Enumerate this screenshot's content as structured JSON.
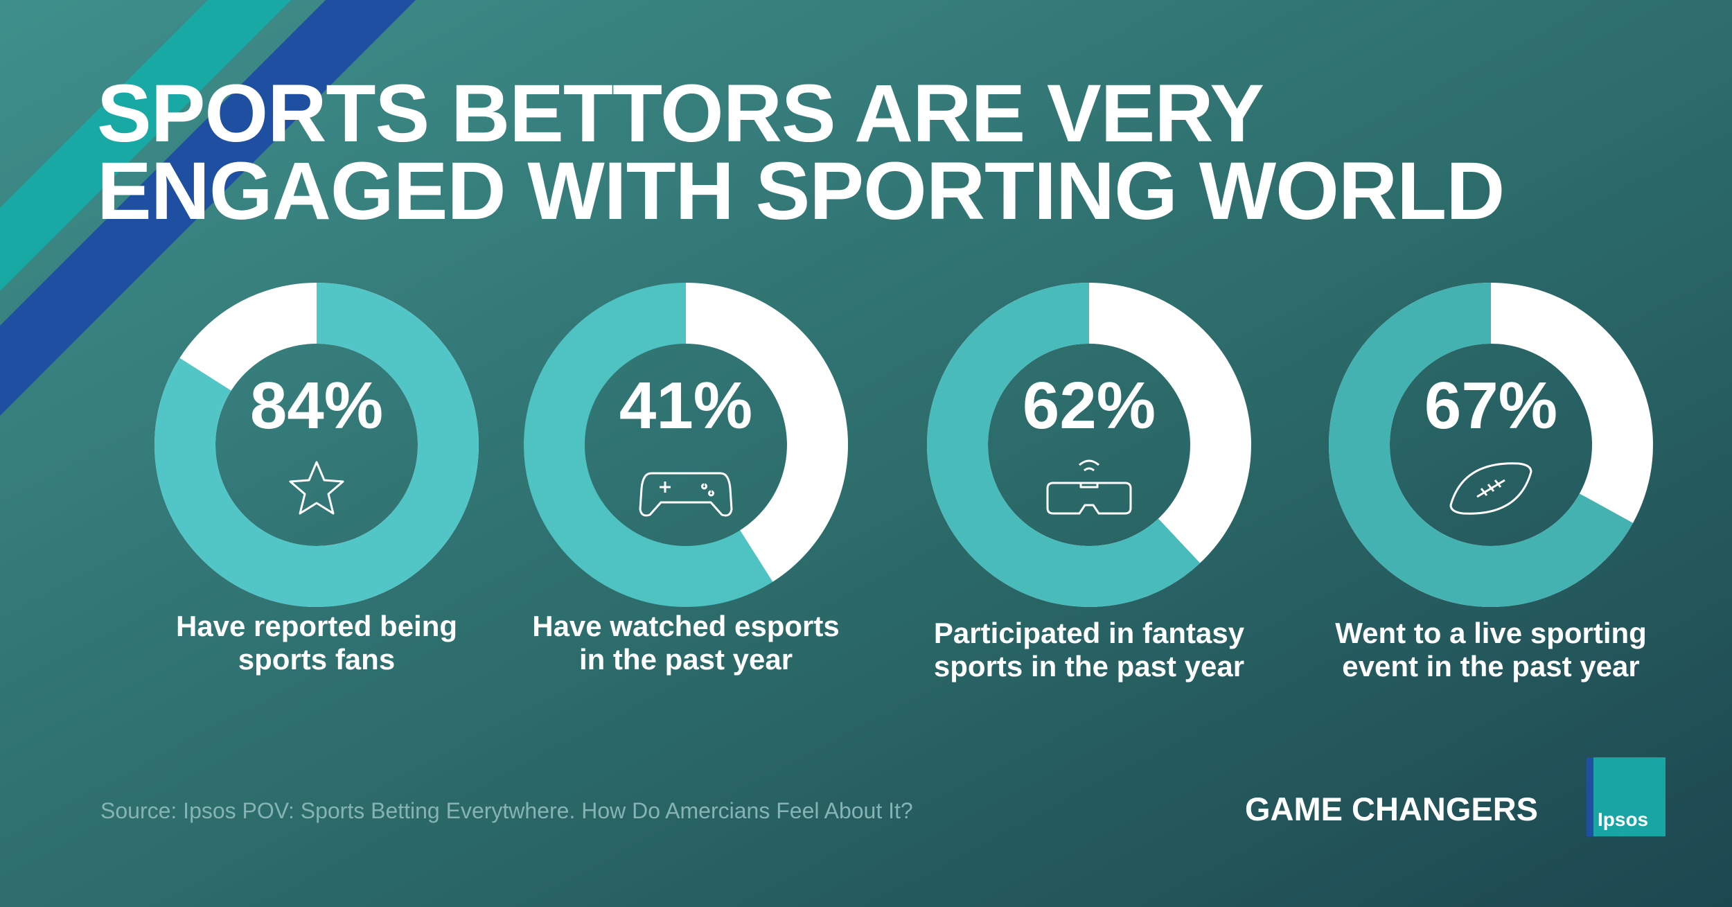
{
  "title": "SPORTS BETTORS ARE VERY ENGAGED WITH SPORTING WORLD",
  "chart_data": [
    {
      "type": "donut",
      "title": "Have reported being sports fans",
      "values": [
        84
      ],
      "value_labels": [
        "84%"
      ],
      "color": "#52c6c6",
      "track_color": "#ffffff",
      "direction": "clockwise"
    },
    {
      "type": "donut",
      "title": "Have watched esports in the past year",
      "values": [
        41
      ],
      "value_labels": [
        "41%"
      ],
      "color": "#ffffff",
      "track_color": "#4fc2c2",
      "direction": "clockwise"
    },
    {
      "type": "donut",
      "title": "Participated in fantasy sports in the past year",
      "values": [
        62
      ],
      "value_labels": [
        "62%"
      ],
      "color": "#4abbbb",
      "track_color": "#ffffff",
      "direction": "counterclockwise"
    },
    {
      "type": "donut",
      "title": "Went to a live sporting event in the past year",
      "values": [
        67
      ],
      "value_labels": [
        "67%"
      ],
      "color": "#45b2b2",
      "track_color": "#ffffff",
      "direction": "counterclockwise"
    }
  ],
  "source": "Source: Ipsos POV: Sports Betting Everytwhere. How Do Amercians Feel About It?",
  "brand": "GAME CHANGERS",
  "logo": "Ipsos"
}
